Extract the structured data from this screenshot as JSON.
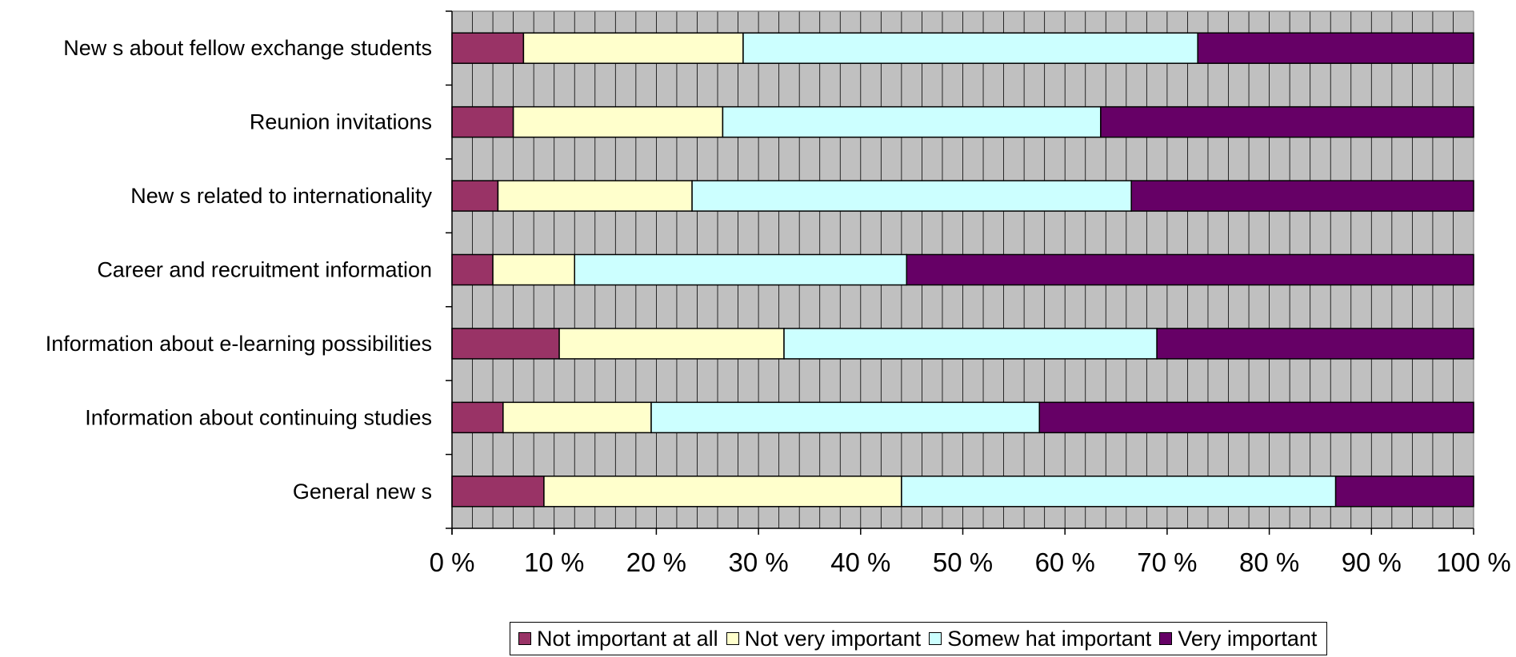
{
  "chart_data": {
    "type": "bar",
    "orientation": "horizontal",
    "stacked": true,
    "percent_stacked": true,
    "title": "",
    "xlabel": "",
    "ylabel": "",
    "xlim": [
      0,
      100
    ],
    "x_tick_labels": [
      "0 %",
      "10 %",
      "20 %",
      "30 %",
      "40 %",
      "50 %",
      "60 %",
      "70 %",
      "80 %",
      "90 %",
      "100 %"
    ],
    "categories": [
      "New s about fellow  exchange students",
      "Reunion invitations",
      "New s related to internationality",
      "Career and recruitment information",
      "Information about e-learning possibilities",
      "Information about continuing studies",
      "General new s"
    ],
    "series": [
      {
        "name": "Not important at all",
        "color": "#993366",
        "values": [
          7,
          6,
          4.5,
          4,
          10.5,
          5,
          9
        ]
      },
      {
        "name": "Not very important",
        "color": "#FFFFCC",
        "values": [
          21.5,
          20.5,
          19,
          8,
          22,
          14.5,
          35
        ]
      },
      {
        "name": "Somew hat important",
        "color": "#CCFFFF",
        "values": [
          44.5,
          37,
          43,
          32.5,
          36.5,
          38,
          42.5
        ]
      },
      {
        "name": "Very important",
        "color": "#660066",
        "values": [
          27,
          36.5,
          33.5,
          55.5,
          31,
          42.5,
          13.5
        ]
      }
    ],
    "grid": true,
    "plot_background": "#C0C0C0",
    "legend_position": "bottom"
  }
}
